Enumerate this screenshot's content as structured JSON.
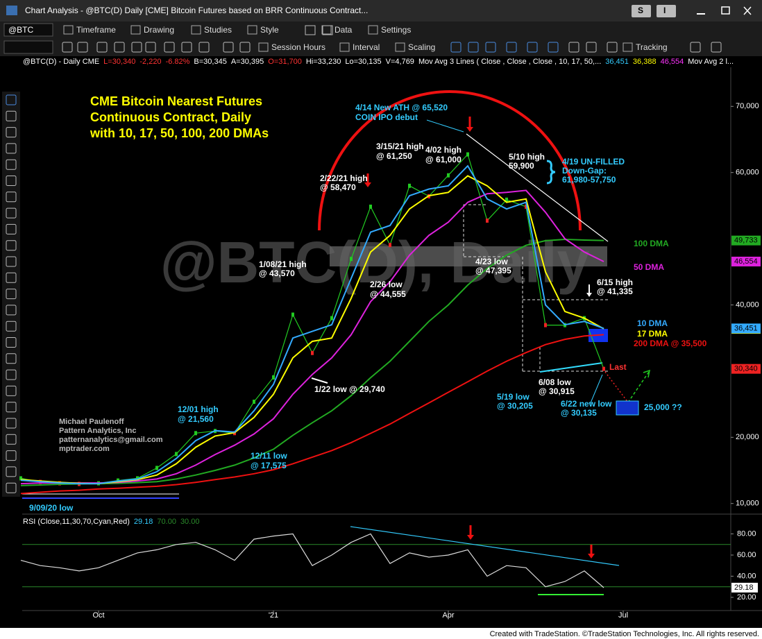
{
  "window": {
    "title": "Chart Analysis - @BTC(D) Daily [CME] Bitcoin Futures based on BRR Continuous Contract...",
    "buttons": [
      "S",
      "I"
    ]
  },
  "toolbar": {
    "symbol": "@BTC",
    "row1": [
      "Timeframe",
      "Drawing",
      "Studies",
      "Style",
      "Data",
      "Settings"
    ],
    "row2": [
      "Session Hours",
      "Interval",
      "Scaling",
      "Tracking"
    ]
  },
  "status_line": [
    {
      "text": "@BTC(D) - Daily  CME",
      "color": "#ffffff"
    },
    {
      "text": "L=30,340",
      "color": "#ff3333"
    },
    {
      "text": "-2,220",
      "color": "#ff3333"
    },
    {
      "text": "-6.82%",
      "color": "#ff3333"
    },
    {
      "text": "B=30,345",
      "color": "#ffffff"
    },
    {
      "text": "A=30,395",
      "color": "#ffffff"
    },
    {
      "text": "O=31,700",
      "color": "#ff3333"
    },
    {
      "text": "Hi=33,230",
      "color": "#ffffff"
    },
    {
      "text": "Lo=30,135",
      "color": "#ffffff"
    },
    {
      "text": "V=4,769",
      "color": "#ffffff"
    },
    {
      "text": "Mov Avg 3 Lines ( Close , Close , Close , 10, 17, 50,...",
      "color": "#ffffff"
    },
    {
      "text": "36,451",
      "color": "#33ccff"
    },
    {
      "text": "36,388",
      "color": "#ffff00"
    },
    {
      "text": "46,554",
      "color": "#ff33ff"
    },
    {
      "text": "Mov Avg 2 l...",
      "color": "#ffffff"
    }
  ],
  "chart_data": [
    {
      "type": "line",
      "watermark": "@BTC(D), Daily",
      "ylim": [
        8500,
        75900
      ],
      "yticks": [
        {
          "value": 10000,
          "label": "10,000"
        },
        {
          "value": 20000,
          "label": "20,000"
        },
        {
          "value": 40000,
          "label": "40,000"
        },
        {
          "value": 60000,
          "label": "60,000"
        },
        {
          "value": 70000,
          "label": "70,000"
        }
      ],
      "series": [
        {
          "color": "#22cc22",
          "down_color": "#ee2222",
          "values": [
            13800,
            13260,
            13050,
            12950,
            13050,
            13470,
            13800,
            15370,
            17470,
            20630,
            20950,
            20630,
            25370,
            29050,
            38530,
            32740,
            38000,
            46950,
            54840,
            49050,
            58000,
            56420,
            59580,
            62740,
            52740,
            55900,
            54840,
            36950,
            36950,
            38000,
            30340,
            null,
            null,
            null,
            null,
            null,
            null
          ],
          "value_labels": [
            null,
            null,
            null,
            null,
            null,
            null,
            null,
            null,
            null,
            null,
            null,
            null,
            null,
            null,
            null,
            null,
            null,
            null,
            null,
            null,
            null,
            null,
            null,
            null,
            null,
            null,
            null,
            null,
            null,
            null,
            "30,340",
            null,
            null,
            null,
            null,
            null,
            null
          ]
        },
        {
          "name": "100 DMA",
          "color": "#22aa22",
          "values": [
            12700,
            12800,
            12900,
            12950,
            13000,
            13050,
            13150,
            13300,
            13700,
            14300,
            15000,
            15800,
            16900,
            18200,
            20300,
            22200,
            24000,
            26300,
            29000,
            31500,
            34500,
            37500,
            40000,
            43000,
            45500,
            47500,
            49000,
            49700,
            49900,
            49800,
            49733,
            null,
            null,
            null,
            null,
            null,
            null
          ],
          "value_labels": [
            null,
            null,
            null,
            null,
            null,
            null,
            null,
            null,
            null,
            null,
            null,
            null,
            null,
            null,
            null,
            null,
            null,
            null,
            null,
            null,
            null,
            null,
            null,
            null,
            null,
            null,
            null,
            null,
            null,
            null,
            "49,733",
            null,
            null,
            null,
            null,
            null,
            null
          ]
        },
        {
          "name": "200 DMA @ 35,500",
          "color": "#ee1111",
          "values": [
            11500,
            11700,
            11900,
            12000,
            12200,
            12300,
            12450,
            12600,
            12850,
            13200,
            13600,
            14000,
            14500,
            15100,
            16000,
            17000,
            18000,
            19200,
            20600,
            22000,
            23600,
            25200,
            26800,
            28400,
            30000,
            31500,
            32800,
            34000,
            34800,
            35300,
            35500,
            null,
            null,
            null,
            null,
            null,
            null
          ]
        },
        {
          "name": "50 DMA",
          "color": "#dd22dd",
          "values": [
            13000,
            13100,
            13100,
            13100,
            13100,
            13200,
            13400,
            13700,
            14500,
            15800,
            17400,
            18800,
            20500,
            22800,
            26500,
            29500,
            32000,
            35500,
            40500,
            43500,
            47500,
            50500,
            52500,
            55500,
            56800,
            57000,
            57300,
            54000,
            50000,
            48000,
            46554,
            null,
            null,
            null,
            null,
            null,
            null
          ],
          "value_labels": [
            null,
            null,
            null,
            null,
            null,
            null,
            null,
            null,
            null,
            null,
            null,
            null,
            null,
            null,
            null,
            null,
            null,
            null,
            null,
            null,
            null,
            null,
            null,
            null,
            null,
            null,
            null,
            null,
            null,
            null,
            "46,554",
            null,
            null,
            null,
            null,
            null,
            null
          ]
        },
        {
          "name": "17 DMA",
          "color": "#ffff00",
          "values": [
            13600,
            13400,
            13200,
            13050,
            13000,
            13300,
            13600,
            14300,
            16000,
            18500,
            20200,
            20700,
            23000,
            26500,
            32000,
            34500,
            35000,
            41000,
            48000,
            50500,
            54500,
            56500,
            57000,
            59500,
            58000,
            55500,
            56000,
            45000,
            39000,
            38000,
            36388,
            null,
            null,
            null,
            null,
            null,
            null
          ],
          "value_labels": [
            null,
            null,
            null,
            null,
            null,
            null,
            null,
            null,
            null,
            null,
            null,
            null,
            null,
            null,
            null,
            null,
            null,
            null,
            null,
            null,
            null,
            null,
            null,
            null,
            null,
            null,
            null,
            null,
            null,
            null,
            "36,388",
            null,
            null,
            null,
            null,
            null,
            null
          ]
        },
        {
          "name": "10 DMA",
          "color": "#33aaff",
          "values": [
            13500,
            13300,
            13100,
            13000,
            13000,
            13400,
            13700,
            14800,
            16800,
            19500,
            21000,
            20800,
            24000,
            28000,
            35000,
            36000,
            37000,
            44000,
            51000,
            52000,
            56500,
            57500,
            58000,
            61000,
            56000,
            54500,
            55500,
            40000,
            37000,
            37500,
            36451,
            null,
            null,
            null,
            null,
            null,
            null
          ],
          "value_labels": [
            null,
            null,
            null,
            null,
            null,
            null,
            null,
            null,
            null,
            null,
            null,
            null,
            null,
            null,
            null,
            null,
            null,
            null,
            null,
            null,
            null,
            null,
            null,
            null,
            null,
            null,
            null,
            null,
            null,
            null,
            "36,451",
            null,
            null,
            null,
            null,
            null,
            null
          ]
        }
      ],
      "annotations": [
        {
          "lines": [
            "CME Bitcoin Nearest Futures",
            "Continuous Contract, Daily",
            "with 10, 17, 50, 100, 200 DMAs"
          ],
          "color": "#ffff00"
        },
        {
          "lines": [
            "4/14 New ATH @ 65,520",
            "COIN IPO debut"
          ],
          "color": "#33ccff"
        },
        {
          "lines": [
            "3/15/21 high",
            "@ 61,250"
          ],
          "color": "#ffffff"
        },
        {
          "lines": [
            "4/02 high",
            "@ 61,000"
          ],
          "color": "#ffffff"
        },
        {
          "lines": [
            "5/10 high",
            "59,900"
          ],
          "color": "#ffffff"
        },
        {
          "lines": [
            "4/19 UN-FILLED",
            "Down-Gap:",
            "61,980-57,750"
          ],
          "color": "#33ccff"
        },
        {
          "lines": [
            "2/22/21 high",
            "@ 58,470"
          ],
          "color": "#ffffff"
        },
        {
          "lines": [
            "1/08/21 high",
            "@ 43,570"
          ],
          "color": "#ffffff"
        },
        {
          "lines": [
            "4/23 low",
            "@ 47,395"
          ],
          "color": "#ffffff"
        },
        {
          "lines": [
            "2/26 low",
            "@ 44,555"
          ],
          "color": "#ffffff"
        },
        {
          "lines": [
            "6/15 high",
            "@ 41,335"
          ],
          "color": "#ffffff"
        },
        {
          "lines": [
            "Last"
          ],
          "color": "#ff3333"
        },
        {
          "lines": [
            "6/08 low",
            "@ 30,915"
          ],
          "color": "#ffffff"
        },
        {
          "lines": [
            "1/22 low @ 29,740"
          ],
          "color": "#ffffff"
        },
        {
          "lines": [
            "5/19 low",
            "@ 30,205"
          ],
          "color": "#33ccff"
        },
        {
          "lines": [
            "6/22 new low",
            "@ 30,135"
          ],
          "color": "#33ccff"
        },
        {
          "lines": [
            "25,000 ??"
          ],
          "color": "#33ccff"
        },
        {
          "lines": [
            "12/01 high",
            "@ 21,560"
          ],
          "color": "#33ccff"
        },
        {
          "lines": [
            "Michael Paulenoff",
            "Pattern Analytics, Inc",
            "patternanalytics@gmail.com",
            "mptrader.com"
          ],
          "color": "#bbbbbb"
        },
        {
          "lines": [
            "12/11 low",
            "@ 17,575"
          ],
          "color": "#33ccff"
        },
        {
          "lines": [
            "9/09/20 low"
          ],
          "color": "#33ccff"
        }
      ]
    },
    {
      "type": "line",
      "title": "RSI (Close,11,30,70,Cyan,Red)",
      "categories": [
        null,
        null,
        null,
        null,
        "Oct",
        null,
        null,
        null,
        null,
        null,
        null,
        null,
        null,
        "'21",
        null,
        null,
        null,
        null,
        null,
        null,
        null,
        null,
        "Apr",
        null,
        null,
        null,
        null,
        null,
        null,
        null,
        null,
        "Jul",
        null,
        null,
        null,
        null,
        null
      ],
      "ylim": [
        7.5,
        97.4
      ],
      "yticks": [
        {
          "value": 20,
          "label": "20.00"
        },
        {
          "value": 40,
          "label": "40.00"
        },
        {
          "value": 60,
          "label": "60.00"
        },
        {
          "value": 80,
          "label": "80.00"
        }
      ],
      "overbought": {
        "value": 70,
        "label": "70.00"
      },
      "oversold": {
        "value": 30,
        "label": "30.00"
      },
      "level_color": "#2a8a2a",
      "series": [
        {
          "color": "#dddddd",
          "values": [
            55,
            50,
            48,
            45,
            48,
            55,
            62,
            65,
            70,
            72,
            65,
            55,
            75,
            78,
            80,
            50,
            60,
            72,
            80,
            52,
            62,
            58,
            60,
            65,
            40,
            50,
            48,
            30,
            35,
            45,
            29.18,
            null,
            null,
            null,
            null,
            null,
            null
          ]
        }
      ]
    }
  ],
  "footer": "Created with TradeStation. ©TradeStation Technologies, Inc. All rights reserved."
}
